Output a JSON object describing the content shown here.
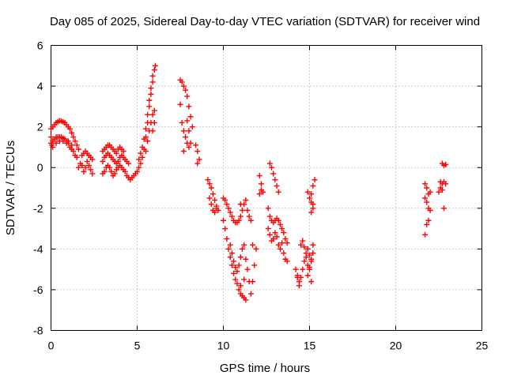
{
  "chart_data": {
    "type": "scatter",
    "title": "Day 085 of 2025, Sidereal Day-to-day VTEC variation (SDTVAR) for receiver wind",
    "xlabel": "GPS time / hours",
    "ylabel": "SDTVAR / TECUs",
    "xlim": [
      0,
      25
    ],
    "ylim": [
      -8,
      6
    ],
    "xticks": [
      0,
      5,
      10,
      15,
      20,
      25
    ],
    "yticks": [
      -8,
      -6,
      -4,
      -2,
      0,
      2,
      4,
      6
    ],
    "grid": true,
    "marker": "+",
    "color": "#ff0000",
    "series": [
      {
        "name": "SDTVAR",
        "points": [
          [
            0.0,
            1.9
          ],
          [
            0.1,
            2.0
          ],
          [
            0.2,
            2.1
          ],
          [
            0.3,
            2.2
          ],
          [
            0.4,
            2.25
          ],
          [
            0.5,
            2.3
          ],
          [
            0.6,
            2.28
          ],
          [
            0.7,
            2.25
          ],
          [
            0.8,
            2.2
          ],
          [
            0.9,
            2.1
          ],
          [
            1.0,
            2.0
          ],
          [
            1.1,
            1.9
          ],
          [
            1.2,
            1.7
          ],
          [
            1.3,
            1.5
          ],
          [
            1.4,
            1.3
          ],
          [
            1.5,
            1.1
          ],
          [
            1.6,
            0.9
          ],
          [
            0.0,
            1.2
          ],
          [
            0.1,
            1.3
          ],
          [
            0.2,
            1.4
          ],
          [
            0.3,
            1.5
          ],
          [
            0.4,
            1.5
          ],
          [
            0.5,
            1.5
          ],
          [
            0.6,
            1.5
          ],
          [
            0.7,
            1.45
          ],
          [
            0.8,
            1.4
          ],
          [
            0.9,
            1.3
          ],
          [
            1.0,
            1.2
          ],
          [
            1.1,
            1.0
          ],
          [
            1.2,
            0.9
          ],
          [
            1.3,
            0.8
          ],
          [
            1.4,
            0.6
          ],
          [
            1.5,
            0.5
          ],
          [
            0.0,
            1.5
          ],
          [
            0.05,
            1.1
          ],
          [
            0.1,
            1.0
          ],
          [
            0.3,
            1.2
          ],
          [
            0.5,
            1.3
          ],
          [
            0.7,
            1.3
          ],
          [
            0.9,
            1.2
          ],
          [
            1.0,
            1.3
          ],
          [
            1.2,
            1.1
          ],
          [
            1.6,
            0.0
          ],
          [
            1.7,
            0.2
          ],
          [
            1.8,
            0.1
          ],
          [
            1.9,
            -0.2
          ],
          [
            2.0,
            0.0
          ],
          [
            2.1,
            0.3
          ],
          [
            2.2,
            0.1
          ],
          [
            2.3,
            -0.1
          ],
          [
            2.4,
            -0.3
          ],
          [
            1.8,
            0.6
          ],
          [
            1.9,
            0.7
          ],
          [
            2.0,
            0.8
          ],
          [
            2.1,
            0.7
          ],
          [
            2.2,
            0.6
          ],
          [
            2.3,
            0.5
          ],
          [
            2.4,
            0.4
          ],
          [
            3.0,
            0.8
          ],
          [
            3.1,
            0.9
          ],
          [
            3.2,
            1.0
          ],
          [
            3.3,
            1.1
          ],
          [
            3.4,
            1.1
          ],
          [
            3.5,
            1.0
          ],
          [
            3.6,
            0.9
          ],
          [
            3.7,
            0.8
          ],
          [
            3.8,
            0.7
          ],
          [
            3.9,
            0.9
          ],
          [
            4.0,
            1.0
          ],
          [
            4.1,
            0.9
          ],
          [
            4.2,
            0.8
          ],
          [
            3.0,
            0.3
          ],
          [
            3.1,
            0.5
          ],
          [
            3.2,
            0.6
          ],
          [
            3.3,
            0.7
          ],
          [
            3.4,
            0.6
          ],
          [
            3.5,
            0.5
          ],
          [
            3.6,
            0.4
          ],
          [
            3.7,
            0.3
          ],
          [
            3.8,
            0.2
          ],
          [
            3.9,
            0.3
          ],
          [
            4.0,
            0.5
          ],
          [
            4.1,
            0.6
          ],
          [
            4.2,
            0.5
          ],
          [
            4.3,
            0.4
          ],
          [
            4.4,
            0.3
          ],
          [
            4.5,
            0.2
          ],
          [
            3.0,
            -0.3
          ],
          [
            3.1,
            -0.2
          ],
          [
            3.2,
            0.0
          ],
          [
            3.3,
            0.1
          ],
          [
            3.4,
            0.0
          ],
          [
            3.5,
            -0.2
          ],
          [
            3.6,
            -0.4
          ],
          [
            3.7,
            -0.3
          ],
          [
            3.8,
            -0.1
          ],
          [
            3.9,
            0.0
          ],
          [
            4.0,
            0.1
          ],
          [
            4.1,
            0.0
          ],
          [
            4.2,
            -0.1
          ],
          [
            4.3,
            -0.2
          ],
          [
            4.4,
            -0.4
          ],
          [
            4.5,
            -0.5
          ],
          [
            4.6,
            -0.6
          ],
          [
            4.7,
            -0.5
          ],
          [
            4.8,
            -0.4
          ],
          [
            4.9,
            -0.3
          ],
          [
            5.0,
            -0.2
          ],
          [
            5.1,
            0.0
          ],
          [
            5.2,
            0.2
          ],
          [
            5.3,
            0.5
          ],
          [
            5.4,
            0.9
          ],
          [
            5.5,
            1.5
          ],
          [
            5.6,
            2.2
          ],
          [
            5.7,
            3.0
          ],
          [
            5.8,
            3.6
          ],
          [
            5.9,
            4.2
          ],
          [
            6.0,
            4.8
          ],
          [
            6.05,
            5.0
          ],
          [
            5.1,
            0.4
          ],
          [
            5.2,
            0.7
          ],
          [
            5.3,
            1.0
          ],
          [
            5.4,
            1.4
          ],
          [
            5.5,
            1.9
          ],
          [
            5.6,
            2.6
          ],
          [
            5.7,
            3.3
          ],
          [
            5.8,
            3.9
          ],
          [
            5.9,
            4.5
          ],
          [
            5.5,
            0.8
          ],
          [
            5.6,
            1.3
          ],
          [
            5.7,
            1.8
          ],
          [
            5.8,
            2.2
          ],
          [
            5.9,
            2.6
          ],
          [
            6.0,
            2.8
          ],
          [
            5.9,
            1.8
          ],
          [
            6.0,
            2.2
          ],
          [
            7.5,
            4.3
          ],
          [
            7.6,
            4.2
          ],
          [
            7.7,
            4.0
          ],
          [
            7.8,
            3.8
          ],
          [
            7.9,
            3.5
          ],
          [
            8.0,
            3.0
          ],
          [
            8.1,
            2.5
          ],
          [
            8.2,
            2.0
          ],
          [
            7.5,
            3.1
          ],
          [
            7.6,
            2.2
          ],
          [
            7.7,
            1.8
          ],
          [
            7.8,
            1.5
          ],
          [
            7.9,
            1.2
          ],
          [
            8.0,
            1.0
          ],
          [
            8.1,
            1.2
          ],
          [
            7.7,
            0.8
          ],
          [
            7.9,
            2.3
          ],
          [
            8.0,
            1.8
          ],
          [
            8.4,
            1.1
          ],
          [
            8.5,
            0.8
          ],
          [
            8.6,
            0.4
          ],
          [
            8.5,
            0.2
          ],
          [
            9.1,
            -0.6
          ],
          [
            9.2,
            -0.8
          ],
          [
            9.3,
            -1.0
          ],
          [
            9.4,
            -1.3
          ],
          [
            9.5,
            -1.6
          ],
          [
            9.6,
            -1.9
          ],
          [
            9.7,
            -2.1
          ],
          [
            9.2,
            -1.5
          ],
          [
            9.3,
            -1.8
          ],
          [
            9.4,
            -2.1
          ],
          [
            9.5,
            -2.2
          ],
          [
            9.6,
            -2.0
          ],
          [
            10.0,
            -1.5
          ],
          [
            10.1,
            -1.6
          ],
          [
            10.2,
            -1.8
          ],
          [
            10.3,
            -2.0
          ],
          [
            10.4,
            -2.2
          ],
          [
            10.5,
            -2.4
          ],
          [
            10.6,
            -2.6
          ],
          [
            10.7,
            -2.7
          ],
          [
            10.8,
            -2.7
          ],
          [
            10.9,
            -2.6
          ],
          [
            11.0,
            -2.4
          ],
          [
            11.1,
            -2.1
          ],
          [
            11.2,
            -1.8
          ],
          [
            11.3,
            -1.6
          ],
          [
            11.0,
            -1.8
          ],
          [
            11.4,
            -2.1
          ],
          [
            11.5,
            -2.4
          ],
          [
            11.6,
            -2.6
          ],
          [
            10.0,
            -2.6
          ],
          [
            10.1,
            -3.0
          ],
          [
            10.2,
            -3.5
          ],
          [
            10.3,
            -4.0
          ],
          [
            10.4,
            -4.4
          ],
          [
            10.5,
            -4.8
          ],
          [
            10.6,
            -5.2
          ],
          [
            10.7,
            -5.5
          ],
          [
            10.8,
            -5.7
          ],
          [
            10.9,
            -6.0
          ],
          [
            11.0,
            -6.2
          ],
          [
            11.1,
            -6.3
          ],
          [
            11.2,
            -6.4
          ],
          [
            11.3,
            -6.5
          ],
          [
            10.4,
            -3.8
          ],
          [
            10.5,
            -4.2
          ],
          [
            10.6,
            -4.6
          ],
          [
            10.7,
            -4.9
          ],
          [
            10.8,
            -5.1
          ],
          [
            10.9,
            -4.8
          ],
          [
            11.0,
            -4.4
          ],
          [
            11.1,
            -4.0
          ],
          [
            11.2,
            -3.8
          ],
          [
            11.3,
            -4.5
          ],
          [
            11.4,
            -5.0
          ],
          [
            11.5,
            -5.6
          ],
          [
            11.6,
            -6.2
          ],
          [
            11.7,
            -5.6
          ],
          [
            11.8,
            -4.8
          ],
          [
            11.9,
            -4.0
          ],
          [
            11.7,
            -3.8
          ],
          [
            11.2,
            -5.5
          ],
          [
            11.0,
            -5.8
          ],
          [
            12.1,
            -0.4
          ],
          [
            12.2,
            -0.8
          ],
          [
            12.3,
            -1.2
          ],
          [
            12.1,
            -1.3
          ],
          [
            12.2,
            -1.1
          ],
          [
            12.7,
            0.2
          ],
          [
            12.8,
            0.0
          ],
          [
            12.9,
            -0.3
          ],
          [
            13.0,
            -0.6
          ],
          [
            13.1,
            -0.9
          ],
          [
            13.2,
            -1.2
          ],
          [
            12.6,
            -2.0
          ],
          [
            12.7,
            -2.4
          ],
          [
            12.8,
            -2.6
          ],
          [
            12.9,
            -2.7
          ],
          [
            13.0,
            -2.6
          ],
          [
            13.1,
            -2.5
          ],
          [
            13.2,
            -2.6
          ],
          [
            13.3,
            -2.8
          ],
          [
            13.4,
            -3.0
          ],
          [
            13.5,
            -3.2
          ],
          [
            13.6,
            -3.5
          ],
          [
            13.7,
            -3.7
          ],
          [
            12.6,
            -3.0
          ],
          [
            12.7,
            -3.3
          ],
          [
            12.8,
            -3.6
          ],
          [
            12.9,
            -3.5
          ],
          [
            13.0,
            -3.2
          ],
          [
            13.1,
            -3.4
          ],
          [
            13.2,
            -3.8
          ],
          [
            13.3,
            -4.0
          ],
          [
            13.4,
            -3.7
          ],
          [
            13.5,
            -4.2
          ],
          [
            13.6,
            -4.5
          ],
          [
            13.7,
            -4.6
          ],
          [
            14.2,
            -5.0
          ],
          [
            14.3,
            -5.3
          ],
          [
            14.4,
            -5.6
          ],
          [
            14.5,
            -5.4
          ],
          [
            14.6,
            -5.0
          ],
          [
            14.7,
            -4.6
          ],
          [
            14.8,
            -4.2
          ],
          [
            14.9,
            -4.0
          ],
          [
            15.0,
            -4.3
          ],
          [
            15.1,
            -4.6
          ],
          [
            15.0,
            -5.0
          ],
          [
            14.9,
            -5.3
          ],
          [
            15.1,
            -5.6
          ],
          [
            14.5,
            -3.8
          ],
          [
            14.6,
            -3.6
          ],
          [
            14.7,
            -3.9
          ],
          [
            14.8,
            -4.4
          ],
          [
            14.9,
            -4.8
          ],
          [
            15.0,
            -4.9
          ],
          [
            15.1,
            -4.5
          ],
          [
            15.2,
            -4.2
          ],
          [
            15.2,
            -3.8
          ],
          [
            14.3,
            -5.4
          ],
          [
            14.4,
            -5.8
          ],
          [
            14.9,
            -1.2
          ],
          [
            15.0,
            -1.5
          ],
          [
            15.1,
            -1.7
          ],
          [
            15.2,
            -1.8
          ],
          [
            15.1,
            -1.3
          ],
          [
            15.2,
            -0.9
          ],
          [
            15.3,
            -0.6
          ],
          [
            15.2,
            -2.0
          ],
          [
            15.1,
            -2.2
          ],
          [
            21.7,
            -0.8
          ],
          [
            21.8,
            -1.0
          ],
          [
            21.9,
            -1.3
          ],
          [
            21.8,
            -1.7
          ],
          [
            21.9,
            -2.0
          ],
          [
            22.0,
            -2.1
          ],
          [
            21.7,
            -1.5
          ],
          [
            21.8,
            -2.8
          ],
          [
            21.7,
            -3.3
          ],
          [
            21.9,
            -2.6
          ],
          [
            22.0,
            -1.2
          ],
          [
            22.6,
            -0.7
          ],
          [
            22.7,
            -0.8
          ],
          [
            22.8,
            -0.7
          ],
          [
            22.9,
            -0.8
          ],
          [
            22.6,
            -1.0
          ],
          [
            22.7,
            -1.1
          ],
          [
            22.5,
            -1.2
          ],
          [
            22.7,
            0.2
          ],
          [
            22.8,
            0.1
          ],
          [
            22.9,
            0.15
          ],
          [
            22.8,
            -2.0
          ]
        ]
      }
    ]
  }
}
